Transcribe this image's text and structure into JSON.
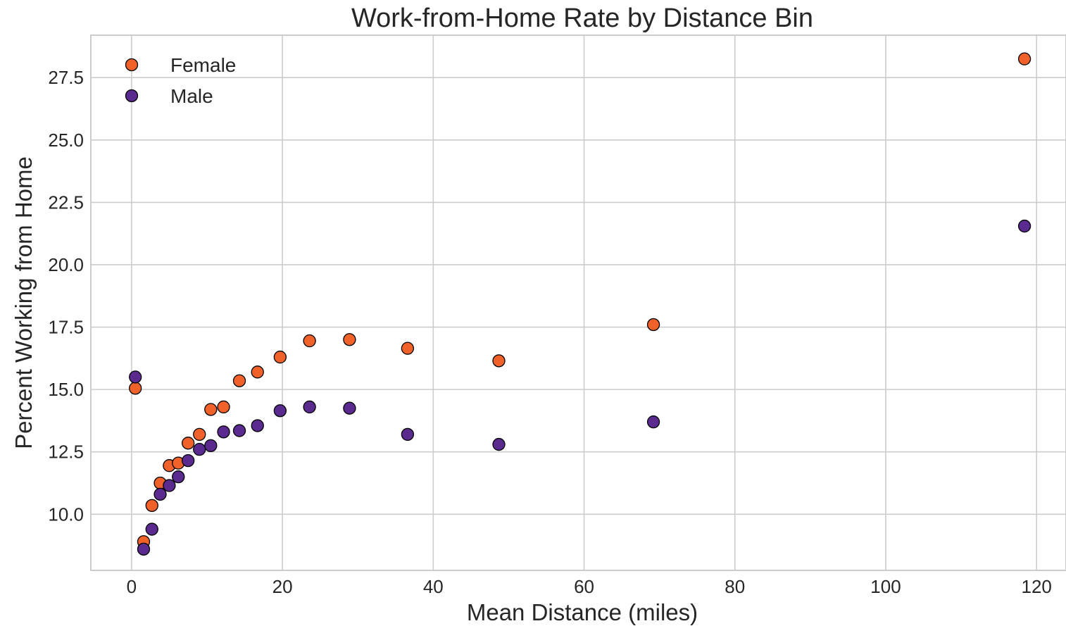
{
  "chart_data": {
    "type": "scatter",
    "title": "Work-from-Home Rate by Distance Bin",
    "xlabel": "Mean Distance (miles)",
    "ylabel": "Percent Working from Home",
    "xlim": [
      -5.4,
      123.9
    ],
    "ylim": [
      7.75,
      29.2
    ],
    "xticks": [
      0,
      20,
      40,
      60,
      80,
      100,
      120
    ],
    "yticks": [
      10.0,
      12.5,
      15.0,
      17.5,
      20.0,
      22.5,
      25.0,
      27.5
    ],
    "xtick_labels": [
      "0",
      "20",
      "40",
      "60",
      "80",
      "100",
      "120"
    ],
    "ytick_labels": [
      "10.0",
      "12.5",
      "15.0",
      "17.5",
      "20.0",
      "22.5",
      "25.0",
      "27.5"
    ],
    "grid": true,
    "legend_position": "top-left",
    "series": [
      {
        "name": "Female",
        "color": "#f0622a",
        "points": [
          {
            "x": 0.5,
            "y": 15.05
          },
          {
            "x": 1.6,
            "y": 8.9
          },
          {
            "x": 2.7,
            "y": 10.35
          },
          {
            "x": 3.8,
            "y": 11.25
          },
          {
            "x": 5.0,
            "y": 11.95
          },
          {
            "x": 6.2,
            "y": 12.05
          },
          {
            "x": 7.5,
            "y": 12.85
          },
          {
            "x": 9.0,
            "y": 13.2
          },
          {
            "x": 10.5,
            "y": 14.2
          },
          {
            "x": 12.2,
            "y": 14.3
          },
          {
            "x": 14.3,
            "y": 15.35
          },
          {
            "x": 16.7,
            "y": 15.7
          },
          {
            "x": 19.7,
            "y": 16.3
          },
          {
            "x": 23.6,
            "y": 16.95
          },
          {
            "x": 28.9,
            "y": 17.0
          },
          {
            "x": 36.6,
            "y": 16.65
          },
          {
            "x": 48.7,
            "y": 16.15
          },
          {
            "x": 69.2,
            "y": 17.6
          },
          {
            "x": 118.4,
            "y": 28.25
          }
        ]
      },
      {
        "name": "Male",
        "color": "#5a2a8e",
        "points": [
          {
            "x": 0.5,
            "y": 15.5
          },
          {
            "x": 1.6,
            "y": 8.6
          },
          {
            "x": 2.7,
            "y": 9.4
          },
          {
            "x": 3.8,
            "y": 10.8
          },
          {
            "x": 5.0,
            "y": 11.15
          },
          {
            "x": 6.2,
            "y": 11.5
          },
          {
            "x": 7.5,
            "y": 12.15
          },
          {
            "x": 9.0,
            "y": 12.6
          },
          {
            "x": 10.5,
            "y": 12.75
          },
          {
            "x": 12.2,
            "y": 13.3
          },
          {
            "x": 14.3,
            "y": 13.35
          },
          {
            "x": 16.7,
            "y": 13.55
          },
          {
            "x": 19.7,
            "y": 14.15
          },
          {
            "x": 23.6,
            "y": 14.3
          },
          {
            "x": 28.9,
            "y": 14.25
          },
          {
            "x": 36.6,
            "y": 13.2
          },
          {
            "x": 48.7,
            "y": 12.8
          },
          {
            "x": 69.2,
            "y": 13.7
          },
          {
            "x": 118.4,
            "y": 21.55
          }
        ]
      }
    ]
  }
}
